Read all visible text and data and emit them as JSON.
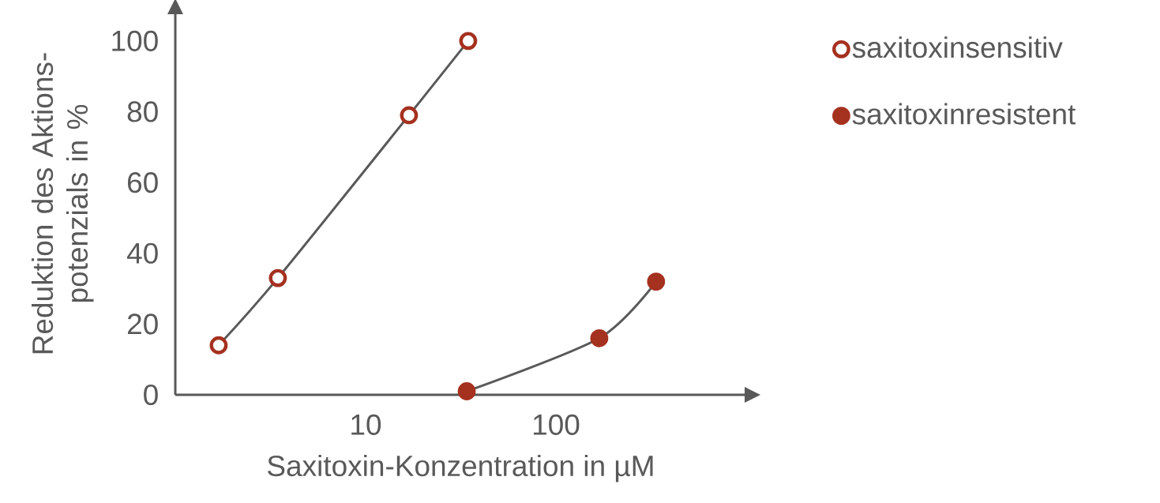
{
  "chart_data": {
    "type": "line",
    "xlabel": "Saxitoxin-Konzentration in µM",
    "ylabel": "Reduktion des Aktions-potenzials in %",
    "log": "x",
    "xlim": [
      1,
      1000
    ],
    "ylim": [
      0,
      108
    ],
    "xticks": [
      10,
      100
    ],
    "yticks": [
      0,
      20,
      40,
      60,
      80,
      100
    ],
    "grid": false,
    "legend": "top right",
    "marker": "circle",
    "line_style": "solid",
    "series": [
      {
        "name": "saxitoxinsensitiv",
        "color": "#a5311f",
        "x": [
          1.69,
          3.46,
          16.9,
          34.6
        ],
        "values": [
          14,
          33,
          79,
          100
        ]
      },
      {
        "name": "saxitoxinresistent",
        "color": "#a5311f",
        "x": [
          34,
          169,
          336
        ],
        "values": [
          1,
          16,
          32
        ]
      }
    ]
  }
}
